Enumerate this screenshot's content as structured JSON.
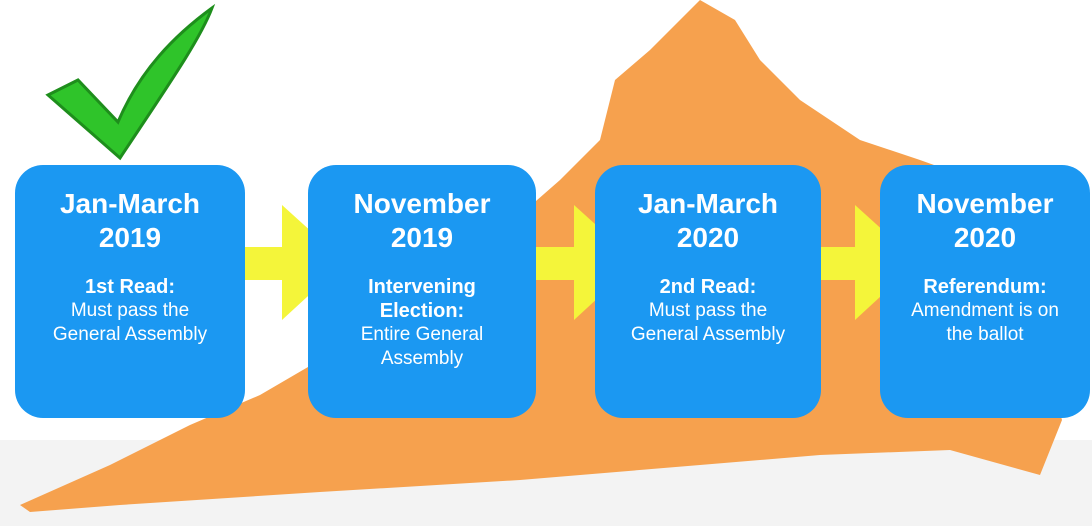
{
  "steps": [
    {
      "date": [
        "Jan-March",
        "2019"
      ],
      "heading": "1st Read:",
      "description": "Must pass the General Assembly"
    },
    {
      "date": [
        "November",
        "2019"
      ],
      "heading": "Intervening Election:",
      "description": "Entire General Assembly"
    },
    {
      "date": [
        "Jan-March",
        "2020"
      ],
      "heading": "2nd Read:",
      "description": "Must pass the General Assembly"
    },
    {
      "date": [
        "November",
        "2020"
      ],
      "heading": "Referendum:",
      "description": "Amendment is on the ballot"
    }
  ]
}
